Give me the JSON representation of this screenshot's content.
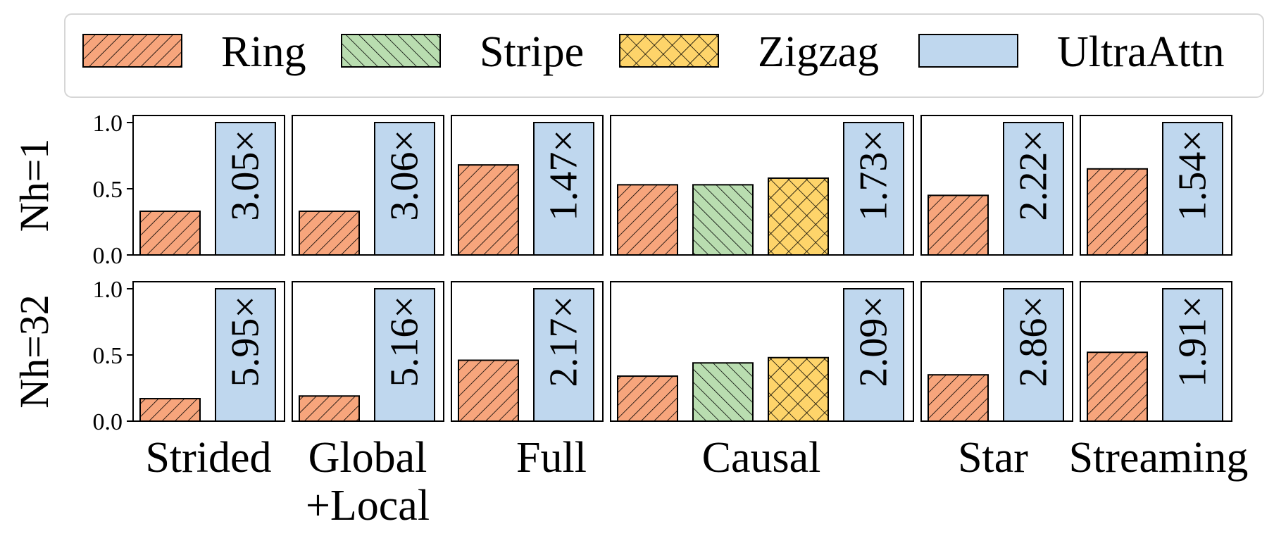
{
  "colors": {
    "Ring": "#F7A57C",
    "Stripe": "#B9DDB0",
    "Zigzag": "#FED46A",
    "UltraAttn": "#BFD7EE"
  },
  "legend": {
    "placement": "top",
    "entries": [
      {
        "name": "Ring",
        "pattern": "diag"
      },
      {
        "name": "Stripe",
        "pattern": "anti"
      },
      {
        "name": "Zigzag",
        "pattern": "cross"
      },
      {
        "name": "UltraAttn",
        "pattern": "none"
      }
    ]
  },
  "chart_data": {
    "type": "bar",
    "ylim": [
      0,
      1.0
    ],
    "yticks": [
      "0.0",
      "0.5",
      "1.0"
    ],
    "rows": [
      {
        "label": "Nh=1",
        "panels": [
          {
            "category": "Strided",
            "bars": [
              {
                "series": "Ring",
                "value": 0.33
              },
              {
                "series": "UltraAttn",
                "value": 1.0,
                "label": "3.05×"
              }
            ]
          },
          {
            "category": "Global +Local",
            "bars": [
              {
                "series": "Ring",
                "value": 0.33
              },
              {
                "series": "UltraAttn",
                "value": 1.0,
                "label": "3.06×"
              }
            ]
          },
          {
            "category": "Full",
            "bars": [
              {
                "series": "Ring",
                "value": 0.68
              },
              {
                "series": "UltraAttn",
                "value": 1.0,
                "label": "1.47×"
              }
            ]
          },
          {
            "category": "Causal",
            "bars": [
              {
                "series": "Ring",
                "value": 0.53
              },
              {
                "series": "Stripe",
                "value": 0.53
              },
              {
                "series": "Zigzag",
                "value": 0.58
              },
              {
                "series": "UltraAttn",
                "value": 1.0,
                "label": "1.73×"
              }
            ]
          },
          {
            "category": "Star",
            "bars": [
              {
                "series": "Ring",
                "value": 0.45
              },
              {
                "series": "UltraAttn",
                "value": 1.0,
                "label": "2.22×"
              }
            ]
          },
          {
            "category": "Streaming",
            "bars": [
              {
                "series": "Ring",
                "value": 0.65
              },
              {
                "series": "UltraAttn",
                "value": 1.0,
                "label": "1.54×"
              }
            ]
          }
        ]
      },
      {
        "label": "Nh=32",
        "panels": [
          {
            "category": "Strided",
            "bars": [
              {
                "series": "Ring",
                "value": 0.17
              },
              {
                "series": "UltraAttn",
                "value": 1.0,
                "label": "5.95×"
              }
            ]
          },
          {
            "category": "Global +Local",
            "bars": [
              {
                "series": "Ring",
                "value": 0.19
              },
              {
                "series": "UltraAttn",
                "value": 1.0,
                "label": "5.16×"
              }
            ]
          },
          {
            "category": "Full",
            "bars": [
              {
                "series": "Ring",
                "value": 0.46
              },
              {
                "series": "UltraAttn",
                "value": 1.0,
                "label": "2.17×"
              }
            ]
          },
          {
            "category": "Causal",
            "bars": [
              {
                "series": "Ring",
                "value": 0.34
              },
              {
                "series": "Stripe",
                "value": 0.44
              },
              {
                "series": "Zigzag",
                "value": 0.48
              },
              {
                "series": "UltraAttn",
                "value": 1.0,
                "label": "2.09×"
              }
            ]
          },
          {
            "category": "Star",
            "bars": [
              {
                "series": "Ring",
                "value": 0.35
              },
              {
                "series": "UltraAttn",
                "value": 1.0,
                "label": "2.86×"
              }
            ]
          },
          {
            "category": "Streaming",
            "bars": [
              {
                "series": "Ring",
                "value": 0.52
              },
              {
                "series": "UltraAttn",
                "value": 1.0,
                "label": "1.91×"
              }
            ]
          }
        ]
      }
    ],
    "xlabels": [
      {
        "lines": [
          "Strided"
        ]
      },
      {
        "lines": [
          "Global",
          "+Local"
        ]
      },
      {
        "lines": [
          "Full"
        ]
      },
      {
        "lines": [
          "Causal"
        ]
      },
      {
        "lines": [
          "Star"
        ]
      },
      {
        "lines": [
          "Streaming"
        ]
      }
    ]
  }
}
